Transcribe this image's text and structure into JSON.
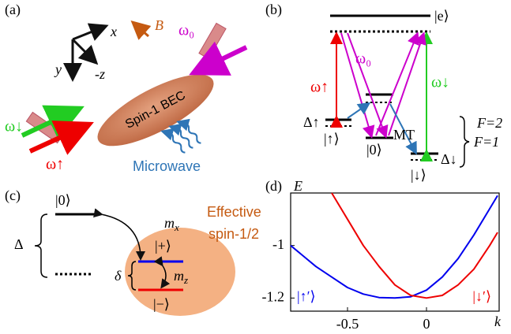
{
  "panel_a": {
    "label": "(a)",
    "axis_x": "x",
    "axis_y": "y",
    "axis_z": "-z",
    "field": "B",
    "omega_0": "ω₀",
    "bec": "Spin-1 BEC",
    "microwave": "Microwave",
    "omega_down": "ω↓",
    "omega_up": "ω↑"
  },
  "panel_b": {
    "label": "(b)",
    "excited": "|e⟩",
    "omega_up": "ω↑",
    "omega_0": "ω₀",
    "omega_down": "ω↓",
    "f2": "F=2",
    "f1": "F=1",
    "delta_up": "Δ↑",
    "state_up": "|↑⟩",
    "state_0": "|0⟩",
    "mt": "MT",
    "delta_down": "Δ↓",
    "state_down": "|↓⟩"
  },
  "panel_c": {
    "label": "(c)",
    "state_0": "|0⟩",
    "coupling_x": {
      "symbol": "m",
      "sub": "x"
    },
    "effective": "Effective",
    "spin": "spin-1/2",
    "big_delta": "Δ",
    "state_plus": "|+⟩",
    "small_delta": "δ",
    "coupling_z": {
      "symbol": "m",
      "sub": "z"
    },
    "state_minus": "|−⟩"
  },
  "chart_data": {
    "type": "line",
    "label": "(d)",
    "ylabel": "E",
    "xlabel": "k",
    "x": [
      -0.86,
      -0.7,
      -0.6,
      -0.5,
      -0.4,
      -0.3,
      -0.2,
      -0.1,
      0,
      0.1,
      0.2,
      0.3,
      0.4,
      0.45
    ],
    "series": [
      {
        "name": "|↑′⟩",
        "color": "#0000ee",
        "values": [
          -1.0,
          -1.08,
          -1.12,
          -1.16,
          -1.185,
          -1.198,
          -1.2,
          -1.195,
          -1.17,
          -1.12,
          -1.05,
          -0.96,
          -0.86,
          -0.81
        ]
      },
      {
        "name": "|↓′⟩",
        "color": "#ee0000",
        "values": [
          null,
          null,
          -0.8,
          -0.9,
          -1.0,
          -1.08,
          -1.15,
          -1.19,
          -1.2,
          -1.19,
          -1.15,
          -1.09,
          -1.0,
          -0.95
        ]
      }
    ],
    "xlim": [
      -0.86,
      0.46
    ],
    "ylim": [
      -1.25,
      -0.8
    ],
    "xticks": [
      -0.5,
      0
    ],
    "yticks": [
      -1,
      -1.2
    ]
  }
}
